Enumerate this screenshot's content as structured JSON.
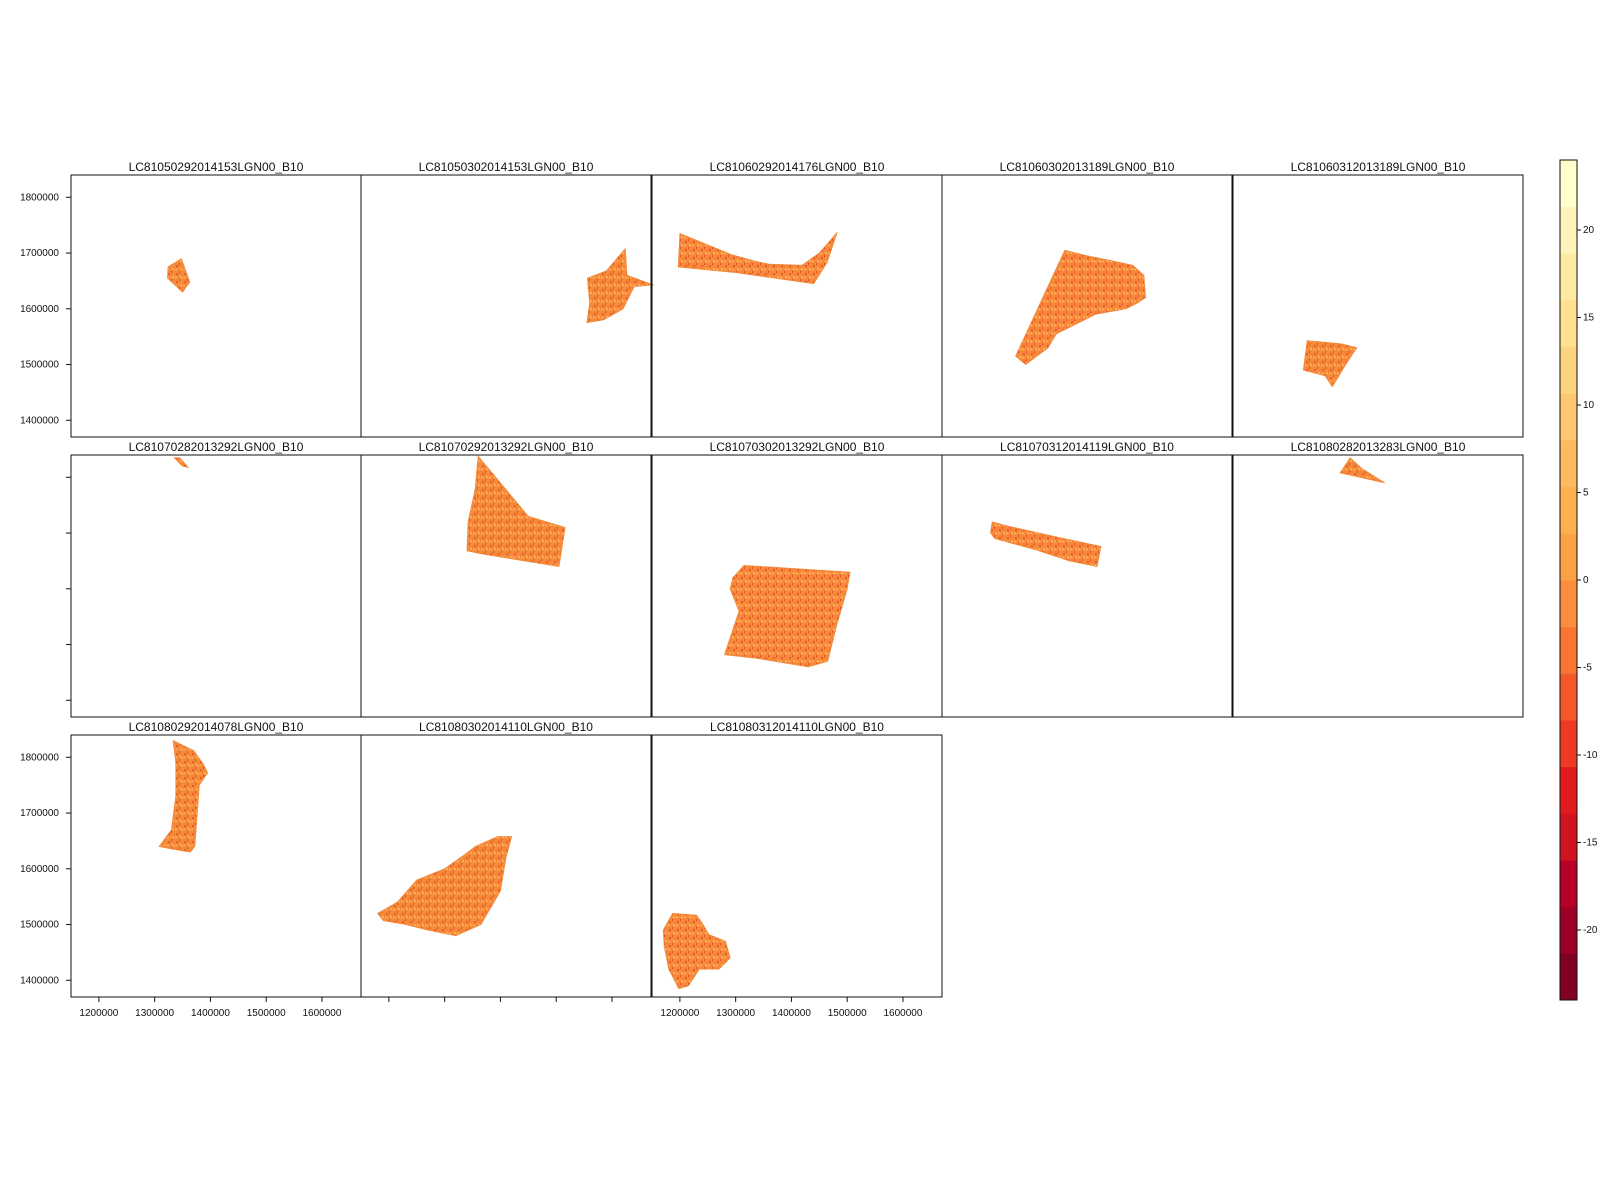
{
  "chart_data": {
    "type": "heatmap",
    "layout": {
      "columns": 5,
      "rows": 3
    },
    "panels": [
      {
        "title": "LC81050292014153LGN00_B10",
        "shape": [
          [
            1350000,
            1630000
          ],
          [
            1363000,
            1648000
          ],
          [
            1348000,
            1690000
          ],
          [
            1324000,
            1675000
          ],
          [
            1323000,
            1655000
          ]
        ]
      },
      {
        "title": "LC81050302014153LGN00_B10",
        "shape": [
          [
            1624000,
            1708000
          ],
          [
            1627000,
            1660000
          ],
          [
            1668000,
            1645000
          ],
          [
            1675000,
            1643000
          ],
          [
            1640000,
            1640000
          ],
          [
            1620000,
            1600000
          ],
          [
            1585000,
            1580000
          ],
          [
            1555000,
            1575000
          ],
          [
            1560000,
            1610000
          ],
          [
            1556000,
            1655000
          ],
          [
            1590000,
            1668000
          ]
        ]
      },
      {
        "title": "LC81060292014176LGN00_B10",
        "shape": [
          [
            1200000,
            1735000
          ],
          [
            1293000,
            1697000
          ],
          [
            1336000,
            1685000
          ],
          [
            1360000,
            1680000
          ],
          [
            1419000,
            1678000
          ],
          [
            1450000,
            1700000
          ],
          [
            1482000,
            1737000
          ],
          [
            1464000,
            1683000
          ],
          [
            1440000,
            1645000
          ],
          [
            1300000,
            1665000
          ],
          [
            1197000,
            1675000
          ]
        ]
      },
      {
        "title": "LC81060302013189LGN00_B10",
        "shape": [
          [
            1370000,
            1705000
          ],
          [
            1410000,
            1695000
          ],
          [
            1460000,
            1685000
          ],
          [
            1492000,
            1678000
          ],
          [
            1512000,
            1660000
          ],
          [
            1515000,
            1620000
          ],
          [
            1500000,
            1610000
          ],
          [
            1480000,
            1600000
          ],
          [
            1425000,
            1590000
          ],
          [
            1355000,
            1555000
          ],
          [
            1340000,
            1530000
          ],
          [
            1300000,
            1500000
          ],
          [
            1282000,
            1515000
          ]
        ]
      },
      {
        "title": "LC81060312013189LGN00_B10",
        "shape": [
          [
            1283000,
            1543000
          ],
          [
            1345000,
            1537000
          ],
          [
            1372000,
            1530000
          ],
          [
            1352000,
            1500000
          ],
          [
            1328000,
            1460000
          ],
          [
            1315000,
            1480000
          ],
          [
            1276000,
            1490000
          ]
        ]
      },
      {
        "title": "LC81070282013292LGN00_B10",
        "shape": [
          [
            1335000,
            1835000
          ],
          [
            1345000,
            1835000
          ],
          [
            1360000,
            1818000
          ],
          [
            1350000,
            1820000
          ]
        ]
      },
      {
        "title": "LC81070292013292LGN00_B10",
        "shape": [
          [
            1360000,
            1838000
          ],
          [
            1450000,
            1730000
          ],
          [
            1516000,
            1710000
          ],
          [
            1505000,
            1640000
          ],
          [
            1370000,
            1662000
          ],
          [
            1340000,
            1668000
          ],
          [
            1342000,
            1720000
          ],
          [
            1355000,
            1780000
          ]
        ]
      },
      {
        "title": "LC81070302013292LGN00_B10",
        "shape": [
          [
            1315000,
            1642000
          ],
          [
            1505000,
            1630000
          ],
          [
            1500000,
            1600000
          ],
          [
            1480000,
            1530000
          ],
          [
            1465000,
            1470000
          ],
          [
            1430000,
            1460000
          ],
          [
            1340000,
            1475000
          ],
          [
            1280000,
            1482000
          ],
          [
            1306000,
            1560000
          ],
          [
            1290000,
            1600000
          ],
          [
            1295000,
            1620000
          ]
        ]
      },
      {
        "title": "LC81070312014119LGN00_B10",
        "shape": [
          [
            1240000,
            1720000
          ],
          [
            1270000,
            1712000
          ],
          [
            1360000,
            1692000
          ],
          [
            1435000,
            1676000
          ],
          [
            1428000,
            1640000
          ],
          [
            1378000,
            1650000
          ],
          [
            1318000,
            1670000
          ],
          [
            1245000,
            1690000
          ],
          [
            1237000,
            1700000
          ]
        ]
      },
      {
        "title": "LC81080282013283LGN00_B10",
        "shape": [
          [
            1360000,
            1835000
          ],
          [
            1382000,
            1815000
          ],
          [
            1422000,
            1790000
          ],
          [
            1378000,
            1800000
          ],
          [
            1342000,
            1808000
          ]
        ]
      },
      {
        "title": "LC81080292014078LGN00_B10",
        "shape": [
          [
            1333000,
            1830000
          ],
          [
            1370000,
            1812000
          ],
          [
            1387000,
            1788000
          ],
          [
            1395000,
            1772000
          ],
          [
            1380000,
            1750000
          ],
          [
            1372000,
            1640000
          ],
          [
            1364000,
            1630000
          ],
          [
            1334000,
            1635000
          ],
          [
            1308000,
            1640000
          ],
          [
            1330000,
            1670000
          ],
          [
            1338000,
            1730000
          ],
          [
            1338000,
            1790000
          ]
        ]
      },
      {
        "title": "LC81080302014110LGN00_B10",
        "shape": [
          [
            1395000,
            1658000
          ],
          [
            1420000,
            1658000
          ],
          [
            1410000,
            1620000
          ],
          [
            1400000,
            1560000
          ],
          [
            1365000,
            1500000
          ],
          [
            1320000,
            1480000
          ],
          [
            1270000,
            1490000
          ],
          [
            1230000,
            1500000
          ],
          [
            1190000,
            1507000
          ],
          [
            1180000,
            1520000
          ],
          [
            1215000,
            1540000
          ],
          [
            1250000,
            1580000
          ],
          [
            1300000,
            1600000
          ],
          [
            1335000,
            1625000
          ],
          [
            1355000,
            1640000
          ]
        ]
      },
      {
        "title": "LC81080312014110LGN00_B10",
        "shape": [
          [
            1187000,
            1520000
          ],
          [
            1230000,
            1517000
          ],
          [
            1240000,
            1502000
          ],
          [
            1252000,
            1482000
          ],
          [
            1282000,
            1470000
          ],
          [
            1290000,
            1440000
          ],
          [
            1270000,
            1420000
          ],
          [
            1235000,
            1420000
          ],
          [
            1215000,
            1390000
          ],
          [
            1198000,
            1385000
          ],
          [
            1180000,
            1420000
          ],
          [
            1172000,
            1460000
          ],
          [
            1170000,
            1490000
          ]
        ]
      }
    ],
    "x_ticks": [
      1200000,
      1300000,
      1400000,
      1500000,
      1600000
    ],
    "x_tick_labels": [
      "1200000",
      "1300000",
      "1400000",
      "1500000",
      "1600000"
    ],
    "xlim": [
      1150000,
      1670000
    ],
    "y_ticks": [
      1400000,
      1500000,
      1600000,
      1700000,
      1800000
    ],
    "y_tick_labels": [
      "1400000",
      "1500000",
      "1600000",
      "1700000",
      "1800000"
    ],
    "ylim": [
      1370000,
      1840000
    ],
    "colorbar": {
      "range": [
        -24,
        24
      ],
      "ticks": [
        -20,
        -15,
        -10,
        -5,
        0,
        5,
        10,
        15,
        20
      ],
      "tick_labels": [
        "-20",
        "-15",
        "-10",
        "-5",
        "0",
        "5",
        "10",
        "15",
        "20"
      ],
      "colors": [
        "#800026",
        "#9c0026",
        "#b80026",
        "#d1121f",
        "#e31a1c",
        "#ec3a23",
        "#f4572a",
        "#f97533",
        "#fc8d3c",
        "#fd9f45",
        "#feb04e",
        "#feba5e",
        "#fec76f",
        "#fed380",
        "#fee090",
        "#ffeaa4",
        "#fff3bc",
        "#ffffcc"
      ]
    },
    "x_axis_label_columns": [
      0,
      2
    ],
    "y_axis_label_rows": [
      0,
      2
    ],
    "xlabel": "",
    "ylabel": ""
  }
}
